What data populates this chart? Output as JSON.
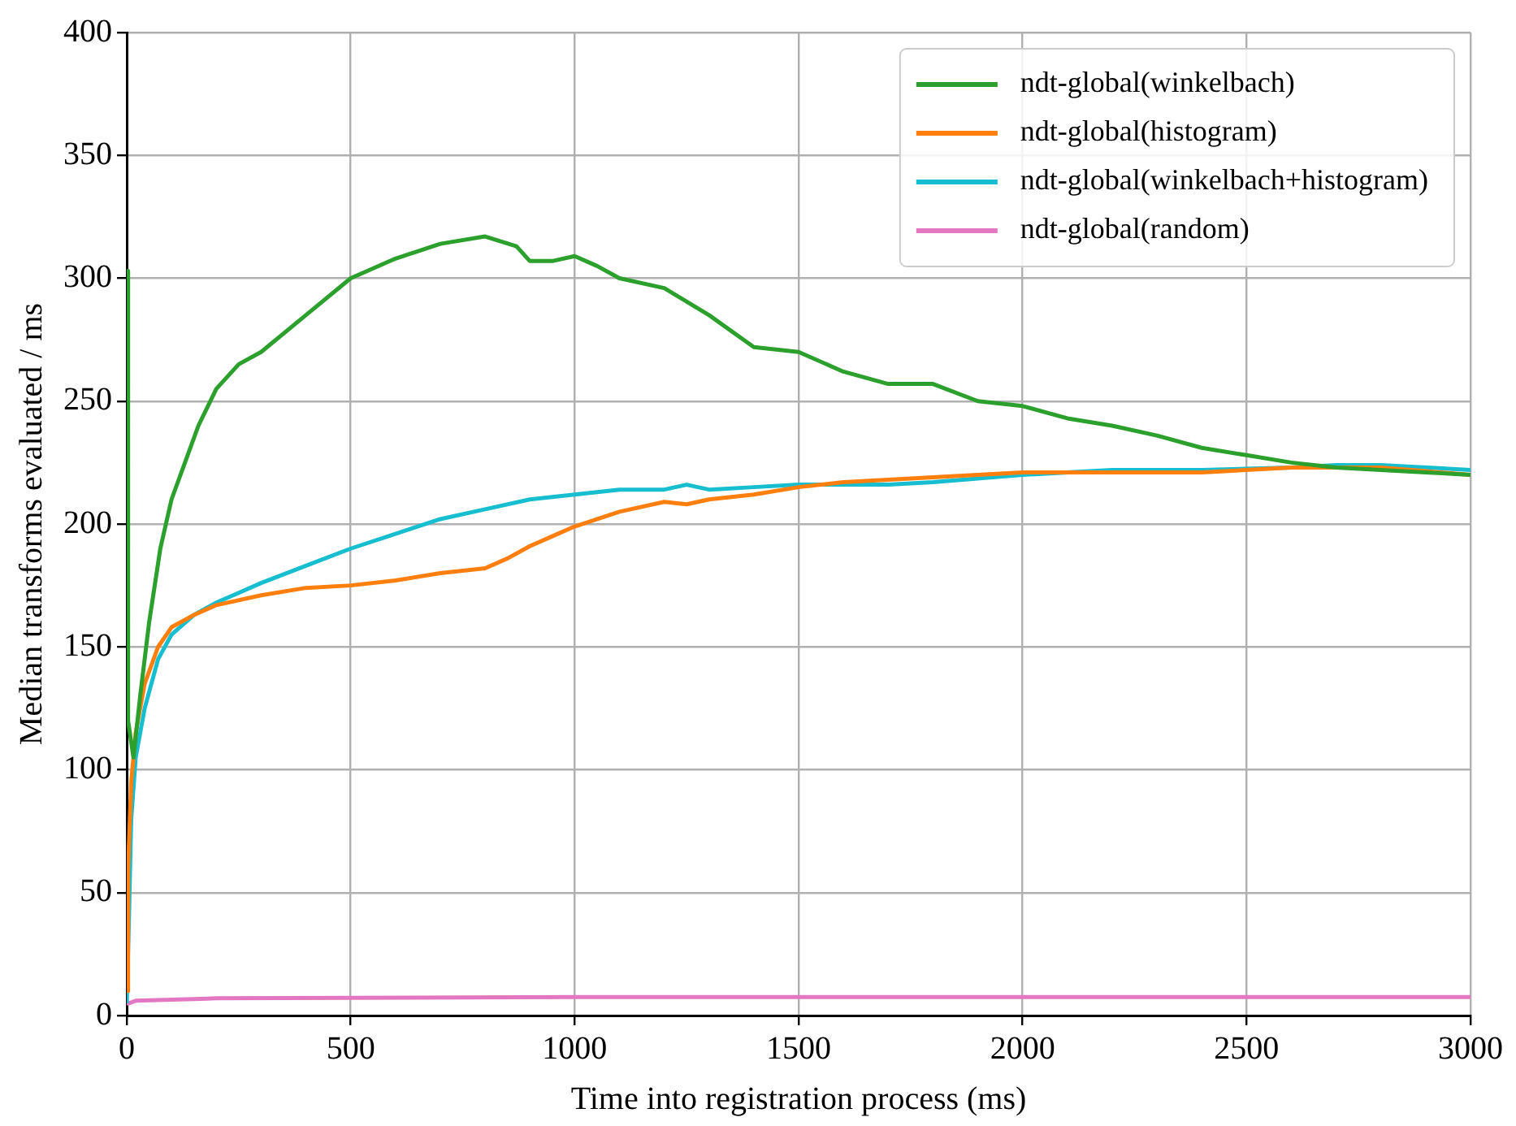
{
  "chart_data": {
    "type": "line",
    "xlabel": "Time into registration process (ms)",
    "ylabel": "Median transforms evaluated / ms",
    "xlim": [
      0,
      3000
    ],
    "xticks": [
      0,
      500,
      1000,
      1500,
      2000,
      2500,
      3000
    ],
    "ylim": [
      0,
      400
    ],
    "yticks": [
      0,
      50,
      100,
      150,
      200,
      250,
      300,
      350,
      400
    ],
    "grid": true,
    "legend": "top right",
    "marker": "none",
    "line_style": "solid",
    "series": [
      {
        "name": "ndt-global(winkelbach)",
        "color": "#2ca02c",
        "x": [
          0,
          3,
          15,
          30,
          50,
          75,
          100,
          130,
          160,
          200,
          250,
          300,
          400,
          500,
          600,
          700,
          800,
          870,
          900,
          950,
          1000,
          1050,
          1100,
          1200,
          1300,
          1400,
          1500,
          1600,
          1700,
          1800,
          1900,
          2000,
          2100,
          2200,
          2300,
          2400,
          2500,
          2600,
          2700,
          2800,
          2900,
          3000
        ],
        "values": [
          303,
          120,
          105,
          130,
          160,
          190,
          210,
          225,
          240,
          255,
          265,
          270,
          285,
          300,
          308,
          314,
          317,
          313,
          307,
          307,
          309,
          305,
          300,
          296,
          285,
          272,
          270,
          262,
          257,
          257,
          250,
          248,
          243,
          240,
          236,
          231,
          228,
          225,
          223,
          222,
          221,
          220
        ]
      },
      {
        "name": "ndt-global(histogram)",
        "color": "#ff7f0e",
        "x": [
          0,
          3,
          10,
          20,
          40,
          70,
          100,
          150,
          200,
          300,
          400,
          500,
          600,
          700,
          800,
          850,
          900,
          950,
          1000,
          1100,
          1200,
          1250,
          1300,
          1400,
          1500,
          1600,
          1700,
          1800,
          2000,
          2200,
          2400,
          2600,
          2800,
          3000
        ],
        "values": [
          10,
          60,
          95,
          115,
          135,
          150,
          158,
          163,
          167,
          171,
          174,
          175,
          177,
          180,
          182,
          186,
          191,
          195,
          199,
          205,
          209,
          208,
          210,
          212,
          215,
          217,
          218,
          219,
          221,
          221,
          221,
          223,
          223,
          220
        ]
      },
      {
        "name": "ndt-global(winkelbach+histogram)",
        "color": "#17becf",
        "x": [
          0,
          5,
          10,
          20,
          40,
          70,
          100,
          150,
          200,
          250,
          300,
          400,
          500,
          600,
          700,
          800,
          900,
          1000,
          1100,
          1200,
          1250,
          1300,
          1400,
          1500,
          1600,
          1700,
          1800,
          2000,
          2200,
          2400,
          2600,
          2700,
          2800,
          3000
        ],
        "values": [
          5,
          40,
          80,
          105,
          125,
          145,
          155,
          163,
          168,
          172,
          176,
          183,
          190,
          196,
          202,
          206,
          210,
          212,
          214,
          214,
          216,
          214,
          215,
          216,
          216,
          216,
          217,
          220,
          222,
          222,
          223,
          224,
          224,
          222
        ]
      },
      {
        "name": "ndt-global(random)",
        "color": "#e377c2",
        "x": [
          0,
          5,
          20,
          200,
          1000,
          3000
        ],
        "values": [
          5,
          5,
          6,
          7,
          7.5,
          7.5
        ]
      }
    ]
  }
}
